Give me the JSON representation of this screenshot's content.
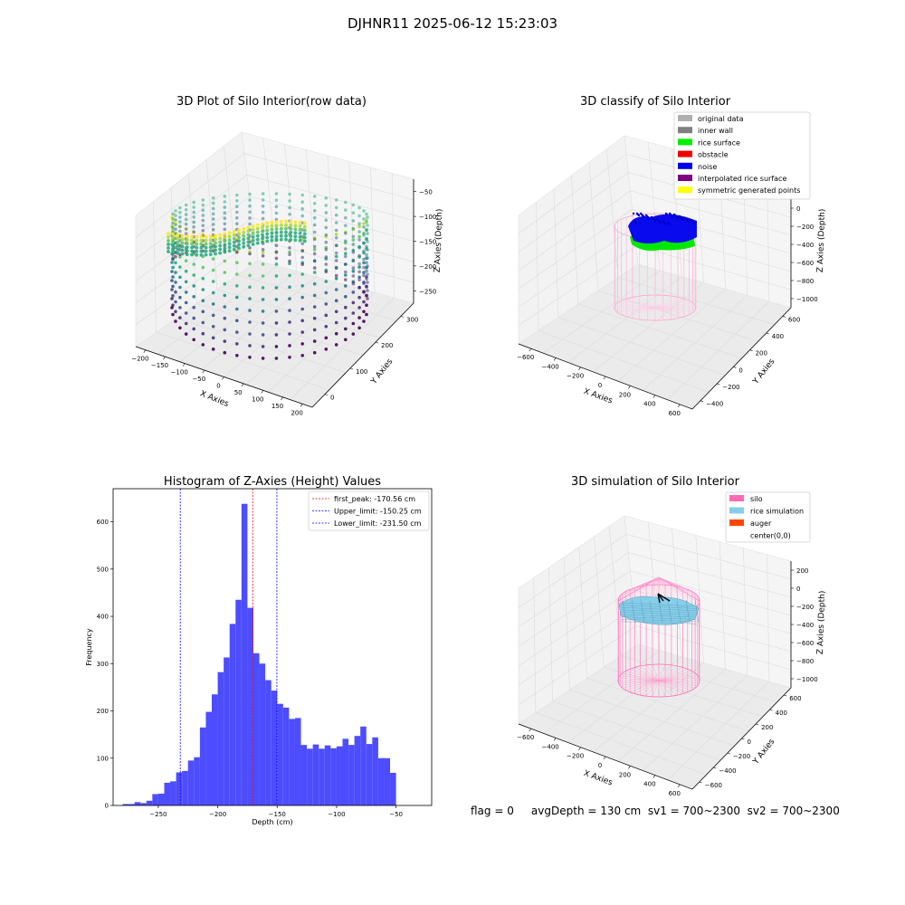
{
  "suptitle": "DJHNR11 2025-06-12 15:23:03",
  "footer": "flag = 0     avgDepth = 130 cm  sv1 = 700~2300  sv2 = 700~2300",
  "panels": {
    "raw": {
      "title": "3D Plot of Silo Interior(row data)",
      "xlabel": "X Axies",
      "ylabel": "Y Axies",
      "zlabel": "Z Axies (Depth)",
      "xticks": [
        "−200",
        "−150",
        "−100",
        "−50",
        "0",
        "50",
        "100",
        "150",
        "200"
      ],
      "yticks": [
        "0",
        "100",
        "200",
        "300"
      ],
      "zticks": [
        "−50",
        "−100",
        "−150",
        "−200",
        "−250"
      ],
      "colormap": "viridis"
    },
    "classify": {
      "title": "3D classify of Silo Interior",
      "xlabel": "X Axies",
      "ylabel": "Y Axies",
      "zlabel": "Z Axies (Depth)",
      "xticks": [
        "−600",
        "−400",
        "−200",
        "0",
        "200",
        "400",
        "600"
      ],
      "yticks": [
        "−400",
        "−200",
        "0",
        "200",
        "400",
        "600"
      ],
      "zticks": [
        "200",
        "0",
        "−200",
        "−400",
        "−600",
        "−800",
        "−1000"
      ],
      "legend": [
        {
          "label": "original data",
          "color": "#b0b0b0"
        },
        {
          "label": "inner wall",
          "color": "#808080"
        },
        {
          "label": "rice surface",
          "color": "#00ee00"
        },
        {
          "label": "obstacle",
          "color": "#ee0000"
        },
        {
          "label": "noise",
          "color": "#0000ee"
        },
        {
          "label": "interpolated rice surface",
          "color": "#800080"
        },
        {
          "label": "symmetric generated points",
          "color": "#ffff00"
        }
      ]
    },
    "simulation": {
      "title": "3D simulation of Silo Interior",
      "xlabel": "X Axies",
      "ylabel": "Y Axies",
      "zlabel": "Z Axies (Depth)",
      "xticks": [
        "−600",
        "−400",
        "−200",
        "0",
        "200",
        "400",
        "600"
      ],
      "yticks": [
        "−600",
        "−400",
        "−200",
        "0",
        "200",
        "400",
        "600"
      ],
      "zticks": [
        "200",
        "0",
        "−200",
        "−400",
        "−600",
        "−800",
        "−1000"
      ],
      "legend": [
        {
          "label": "silo",
          "color": "#ff69b4"
        },
        {
          "label": "rice simulation",
          "color": "#87ceeb"
        },
        {
          "label": "auger",
          "color": "#ff4500"
        },
        {
          "label": "center(0,0)",
          "color": ""
        }
      ]
    }
  },
  "chart_data": {
    "type": "bar",
    "title": "Histogram of Z-Axies (Height) Values",
    "xlabel": "Depth (cm)",
    "ylabel": "Frequency",
    "xlim": [
      -288,
      -20
    ],
    "ylim": [
      0,
      670
    ],
    "xticks": [
      {
        "v": -250,
        "t": "−250"
      },
      {
        "v": -200,
        "t": "−200"
      },
      {
        "v": -150,
        "t": "−150"
      },
      {
        "v": -100,
        "t": "−100"
      },
      {
        "v": -50,
        "t": "−50"
      }
    ],
    "yticks": [
      0,
      100,
      200,
      300,
      400,
      500,
      600
    ],
    "bar_color": "#4d4dff",
    "bin_start": -280,
    "bin_width": 5,
    "values": [
      3,
      3,
      7,
      5,
      10,
      24,
      25,
      48,
      51,
      70,
      73,
      95,
      102,
      165,
      198,
      235,
      282,
      313,
      384,
      435,
      638,
      418,
      322,
      300,
      265,
      243,
      215,
      207,
      183,
      185,
      128,
      120,
      129,
      120,
      127,
      121,
      125,
      141,
      128,
      147,
      167,
      130,
      144,
      100,
      100,
      69
    ],
    "vlines": [
      {
        "x": -170.56,
        "label": "first_peak: -170.56 cm",
        "color": "#ff0000"
      },
      {
        "x": -150.25,
        "label": "Upper_limit: -150.25 cm",
        "color": "#0000ff"
      },
      {
        "x": -231.5,
        "label": "Lower_limit: -231.50 cm",
        "color": "#0000ff"
      }
    ],
    "legend_position": "upper right"
  }
}
